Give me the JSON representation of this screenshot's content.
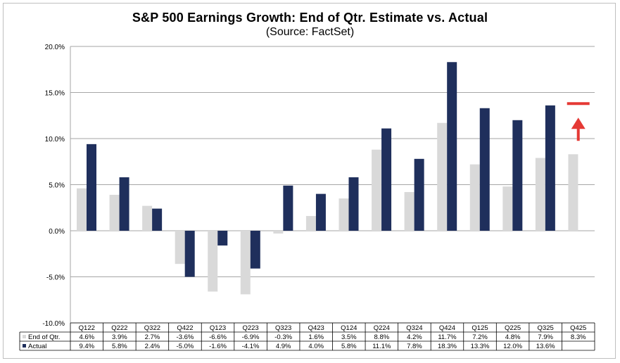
{
  "title": "S&P 500 Earnings Growth: End of Qtr. Estimate vs. Actual",
  "subtitle": "(Source: FactSet)",
  "colors": {
    "estimate": "#d9d9d9",
    "actual": "#1f2f5c",
    "arrow": "#e53935",
    "grid": "#a6a6a6"
  },
  "chart_data": {
    "type": "bar",
    "title": "S&P 500 Earnings Growth: End of Qtr. Estimate vs. Actual",
    "subtitle": "(Source: FactSet)",
    "categories": [
      "Q122",
      "Q222",
      "Q322",
      "Q422",
      "Q123",
      "Q223",
      "Q323",
      "Q423",
      "Q124",
      "Q224",
      "Q324",
      "Q424",
      "Q125",
      "Q225",
      "Q325",
      "Q425"
    ],
    "series": [
      {
        "name": "End of Qtr.",
        "values": [
          4.6,
          3.9,
          2.7,
          -3.6,
          -6.6,
          -6.9,
          -0.3,
          1.6,
          3.5,
          8.8,
          4.2,
          11.7,
          7.2,
          4.8,
          7.9,
          8.3
        ],
        "labels": [
          "4.6%",
          "3.9%",
          "2.7%",
          "-3.6%",
          "-6.6%",
          "-6.9%",
          "-0.3%",
          "1.6%",
          "3.5%",
          "8.8%",
          "4.2%",
          "11.7%",
          "7.2%",
          "4.8%",
          "7.9%",
          "8.3%"
        ]
      },
      {
        "name": "Actual",
        "values": [
          9.4,
          5.8,
          2.4,
          -5.0,
          -1.6,
          -4.1,
          4.9,
          4.0,
          5.8,
          11.1,
          7.8,
          18.3,
          13.3,
          12.0,
          13.6,
          null
        ],
        "labels": [
          "9.4%",
          "5.8%",
          "2.4%",
          "-5.0%",
          "-1.6%",
          "-4.1%",
          "4.9%",
          "4.0%",
          "5.8%",
          "11.1%",
          "7.8%",
          "18.3%",
          "13.3%",
          "12.0%",
          "13.6%",
          ""
        ]
      }
    ],
    "y_ticks": [
      20,
      15,
      10,
      5,
      0,
      -5,
      -10
    ],
    "y_tick_labels": [
      "20.0%",
      "15.0%",
      "10.0%",
      "5.0%",
      "0.0%",
      "-5.0%",
      "-10.0%"
    ],
    "ylim": [
      -10,
      20
    ],
    "grid": true,
    "legend": "data table below chart",
    "annotation": {
      "category": "Q425",
      "marker_value": 13.8,
      "arrow": "up"
    }
  }
}
